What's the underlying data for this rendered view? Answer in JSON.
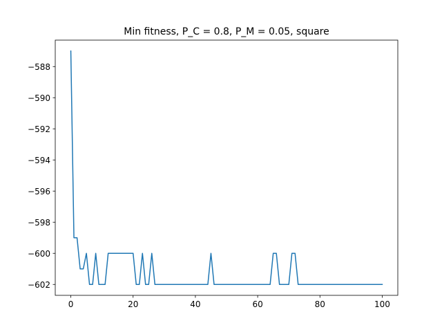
{
  "chart_data": {
    "type": "line",
    "title": "Min fitness, P_C = 0.8, P_M = 0.05, square",
    "xlabel": "",
    "ylabel": "",
    "xlim": [
      -5,
      105
    ],
    "ylim": [
      -602.7,
      -586.3
    ],
    "xticks": [
      0,
      20,
      40,
      60,
      80,
      100
    ],
    "yticks": [
      -588,
      -590,
      -592,
      -594,
      -596,
      -598,
      -600,
      -602
    ],
    "grid": false,
    "color": "#1f77b4",
    "series": [
      {
        "x": [
          0,
          1,
          2,
          3,
          4,
          5,
          6,
          7,
          8,
          9,
          10,
          11,
          12,
          13,
          14,
          15,
          16,
          17,
          18,
          19,
          20,
          21,
          22,
          23,
          24,
          25,
          26,
          27,
          28,
          29,
          30,
          31,
          32,
          33,
          34,
          35,
          36,
          37,
          38,
          39,
          40,
          41,
          42,
          43,
          44,
          45,
          46,
          47,
          48,
          49,
          50,
          51,
          52,
          53,
          54,
          55,
          56,
          57,
          58,
          59,
          60,
          61,
          62,
          63,
          64,
          65,
          66,
          67,
          68,
          69,
          70,
          71,
          72,
          73,
          74,
          75,
          76,
          77,
          78,
          79,
          80,
          81,
          82,
          83,
          84,
          85,
          86,
          87,
          88,
          89,
          90,
          91,
          92,
          93,
          94,
          95,
          96,
          97,
          98,
          99,
          100
        ],
        "values": [
          -587,
          -599,
          -599,
          -601,
          -601,
          -600,
          -602,
          -602,
          -600,
          -602,
          -602,
          -602,
          -600,
          -600,
          -600,
          -600,
          -600,
          -600,
          -600,
          -600,
          -600,
          -602,
          -602,
          -600,
          -602,
          -602,
          -600,
          -602,
          -602,
          -602,
          -602,
          -602,
          -602,
          -602,
          -602,
          -602,
          -602,
          -602,
          -602,
          -602,
          -602,
          -602,
          -602,
          -602,
          -602,
          -600,
          -602,
          -602,
          -602,
          -602,
          -602,
          -602,
          -602,
          -602,
          -602,
          -602,
          -602,
          -602,
          -602,
          -602,
          -602,
          -602,
          -602,
          -602,
          -602,
          -600,
          -600,
          -602,
          -602,
          -602,
          -602,
          -600,
          -600,
          -602,
          -602,
          -602,
          -602,
          -602,
          -602,
          -602,
          -602,
          -602,
          -602,
          -602,
          -602,
          -602,
          -602,
          -602,
          -602,
          -602,
          -602,
          -602,
          -602,
          -602,
          -602,
          -602,
          -602,
          -602,
          -602,
          -602,
          -602
        ]
      }
    ]
  }
}
